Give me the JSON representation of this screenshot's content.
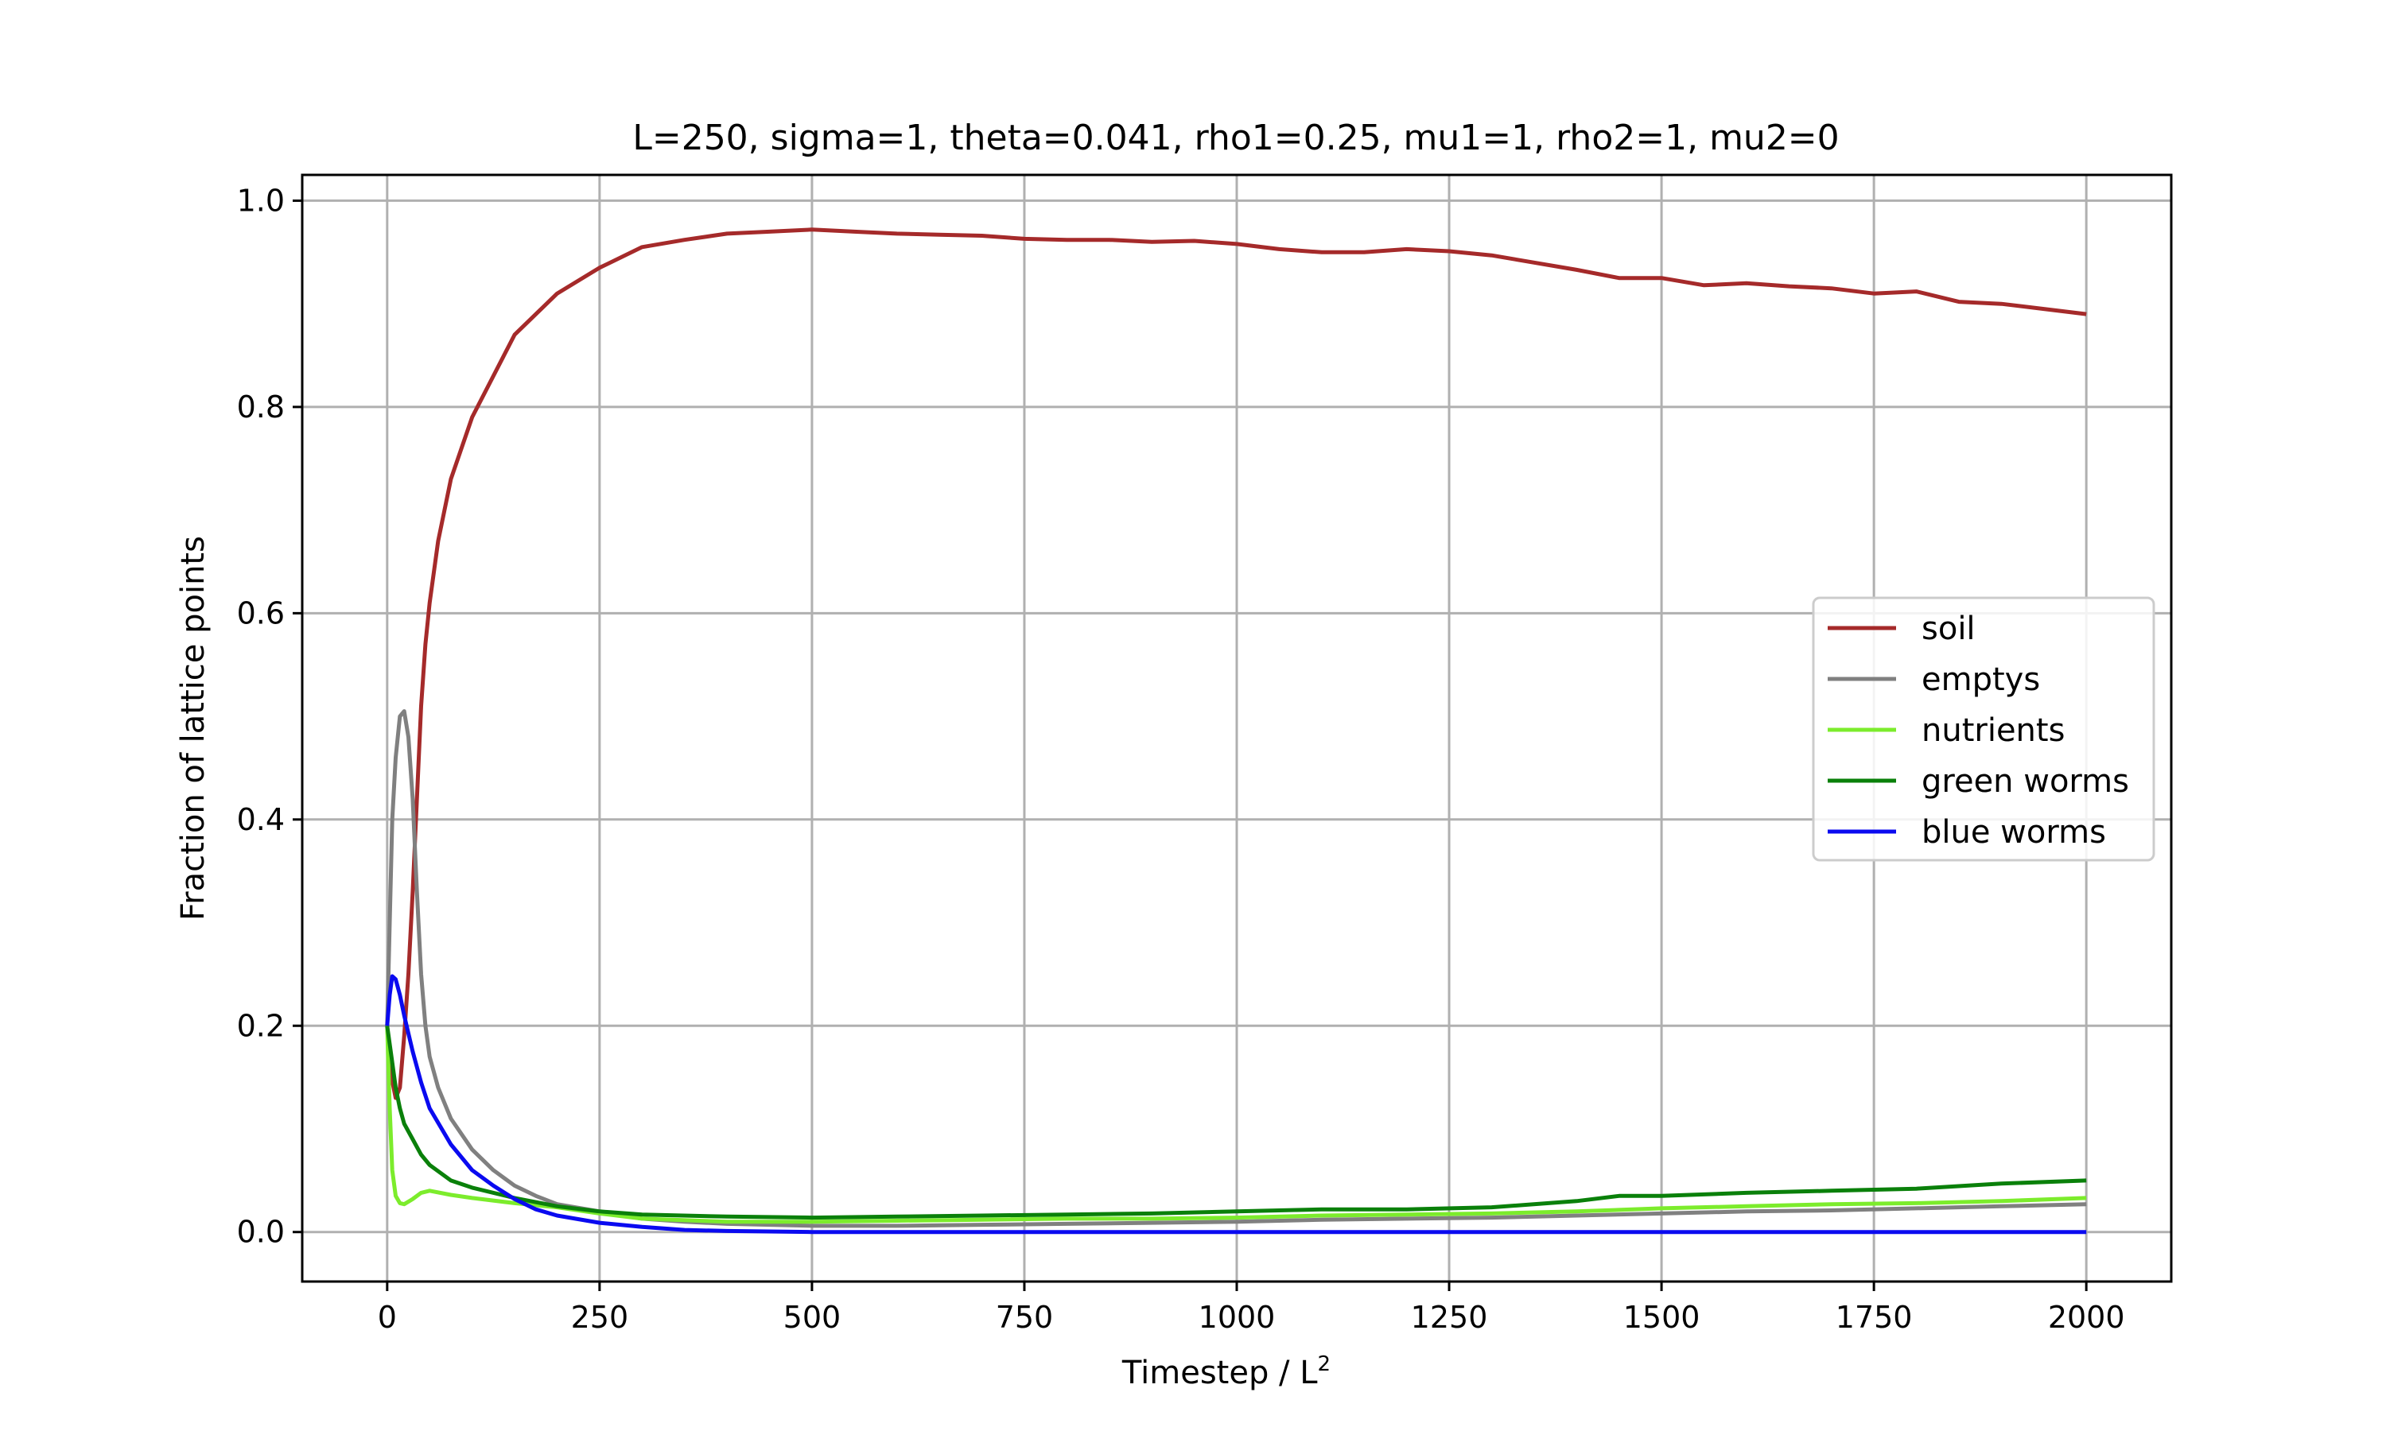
{
  "chart_data": {
    "type": "line",
    "title": "L=250, sigma=1, theta=0.041, rho1=0.25, mu1=1, rho2=1, mu2=0",
    "xlabel": "Timestep / L",
    "xlabel_sup": "2",
    "ylabel": "Fraction of lattice points",
    "xlim": [
      -100,
      2100
    ],
    "ylim": [
      -0.048,
      1.025
    ],
    "xticks": [
      0,
      250,
      500,
      750,
      1000,
      1250,
      1500,
      1750,
      2000
    ],
    "xtick_labels": [
      "0",
      "250",
      "500",
      "750",
      "1000",
      "1250",
      "1500",
      "1750",
      "2000"
    ],
    "yticks": [
      0.0,
      0.2,
      0.4,
      0.6,
      0.8,
      1.0
    ],
    "ytick_labels": [
      "0.0",
      "0.2",
      "0.4",
      "0.6",
      "0.8",
      "1.0"
    ],
    "grid": true,
    "legend_position": "right",
    "series": [
      {
        "name": "soil",
        "color": "#a52a2a",
        "points": [
          [
            0,
            0.2
          ],
          [
            5,
            0.15
          ],
          [
            10,
            0.13
          ],
          [
            15,
            0.14
          ],
          [
            20,
            0.19
          ],
          [
            25,
            0.25
          ],
          [
            30,
            0.33
          ],
          [
            35,
            0.42
          ],
          [
            40,
            0.51
          ],
          [
            45,
            0.57
          ],
          [
            50,
            0.61
          ],
          [
            60,
            0.67
          ],
          [
            75,
            0.73
          ],
          [
            100,
            0.79
          ],
          [
            125,
            0.83
          ],
          [
            150,
            0.87
          ],
          [
            175,
            0.89
          ],
          [
            200,
            0.91
          ],
          [
            250,
            0.935
          ],
          [
            300,
            0.955
          ],
          [
            350,
            0.962
          ],
          [
            400,
            0.968
          ],
          [
            450,
            0.97
          ],
          [
            500,
            0.972
          ],
          [
            550,
            0.97
          ],
          [
            600,
            0.968
          ],
          [
            650,
            0.967
          ],
          [
            700,
            0.966
          ],
          [
            750,
            0.963
          ],
          [
            800,
            0.962
          ],
          [
            850,
            0.962
          ],
          [
            900,
            0.96
          ],
          [
            950,
            0.961
          ],
          [
            1000,
            0.958
          ],
          [
            1050,
            0.953
          ],
          [
            1100,
            0.95
          ],
          [
            1150,
            0.95
          ],
          [
            1200,
            0.953
          ],
          [
            1250,
            0.951
          ],
          [
            1300,
            0.947
          ],
          [
            1350,
            0.94
          ],
          [
            1400,
            0.933
          ],
          [
            1450,
            0.925
          ],
          [
            1500,
            0.925
          ],
          [
            1550,
            0.918
          ],
          [
            1600,
            0.92
          ],
          [
            1650,
            0.917
          ],
          [
            1700,
            0.915
          ],
          [
            1750,
            0.91
          ],
          [
            1800,
            0.912
          ],
          [
            1850,
            0.902
          ],
          [
            1900,
            0.9
          ],
          [
            1950,
            0.895
          ],
          [
            2000,
            0.89
          ]
        ]
      },
      {
        "name": "emptys",
        "color": "#808080",
        "points": [
          [
            0,
            0.2
          ],
          [
            3,
            0.3
          ],
          [
            6,
            0.4
          ],
          [
            10,
            0.46
          ],
          [
            15,
            0.5
          ],
          [
            20,
            0.505
          ],
          [
            25,
            0.48
          ],
          [
            30,
            0.42
          ],
          [
            35,
            0.33
          ],
          [
            40,
            0.25
          ],
          [
            45,
            0.2
          ],
          [
            50,
            0.17
          ],
          [
            60,
            0.14
          ],
          [
            75,
            0.11
          ],
          [
            100,
            0.08
          ],
          [
            125,
            0.06
          ],
          [
            150,
            0.045
          ],
          [
            175,
            0.035
          ],
          [
            200,
            0.027
          ],
          [
            250,
            0.02
          ],
          [
            300,
            0.013
          ],
          [
            350,
            0.01
          ],
          [
            400,
            0.008
          ],
          [
            500,
            0.006
          ],
          [
            600,
            0.006
          ],
          [
            700,
            0.007
          ],
          [
            800,
            0.008
          ],
          [
            900,
            0.009
          ],
          [
            1000,
            0.01
          ],
          [
            1100,
            0.012
          ],
          [
            1200,
            0.013
          ],
          [
            1300,
            0.014
          ],
          [
            1400,
            0.016
          ],
          [
            1500,
            0.018
          ],
          [
            1600,
            0.02
          ],
          [
            1700,
            0.021
          ],
          [
            1800,
            0.023
          ],
          [
            1900,
            0.025
          ],
          [
            2000,
            0.027
          ]
        ]
      },
      {
        "name": "nutrients",
        "color": "#7cec2c",
        "points": [
          [
            0,
            0.2
          ],
          [
            3,
            0.12
          ],
          [
            6,
            0.06
          ],
          [
            10,
            0.035
          ],
          [
            15,
            0.028
          ],
          [
            20,
            0.027
          ],
          [
            30,
            0.032
          ],
          [
            40,
            0.038
          ],
          [
            50,
            0.04
          ],
          [
            75,
            0.036
          ],
          [
            100,
            0.033
          ],
          [
            150,
            0.028
          ],
          [
            200,
            0.024
          ],
          [
            250,
            0.018
          ],
          [
            300,
            0.013
          ],
          [
            400,
            0.01
          ],
          [
            500,
            0.01
          ],
          [
            600,
            0.011
          ],
          [
            700,
            0.012
          ],
          [
            800,
            0.013
          ],
          [
            900,
            0.013
          ],
          [
            1000,
            0.014
          ],
          [
            1100,
            0.016
          ],
          [
            1200,
            0.017
          ],
          [
            1300,
            0.018
          ],
          [
            1400,
            0.02
          ],
          [
            1500,
            0.023
          ],
          [
            1600,
            0.025
          ],
          [
            1700,
            0.027
          ],
          [
            1800,
            0.028
          ],
          [
            1900,
            0.03
          ],
          [
            2000,
            0.033
          ]
        ]
      },
      {
        "name": "green worms",
        "color": "#0a800a",
        "points": [
          [
            0,
            0.2
          ],
          [
            5,
            0.17
          ],
          [
            10,
            0.14
          ],
          [
            15,
            0.12
          ],
          [
            20,
            0.105
          ],
          [
            30,
            0.09
          ],
          [
            40,
            0.075
          ],
          [
            50,
            0.065
          ],
          [
            75,
            0.05
          ],
          [
            100,
            0.043
          ],
          [
            150,
            0.033
          ],
          [
            200,
            0.025
          ],
          [
            250,
            0.02
          ],
          [
            300,
            0.017
          ],
          [
            400,
            0.015
          ],
          [
            500,
            0.014
          ],
          [
            600,
            0.015
          ],
          [
            700,
            0.016
          ],
          [
            800,
            0.017
          ],
          [
            900,
            0.018
          ],
          [
            1000,
            0.02
          ],
          [
            1100,
            0.022
          ],
          [
            1200,
            0.022
          ],
          [
            1300,
            0.024
          ],
          [
            1400,
            0.03
          ],
          [
            1450,
            0.035
          ],
          [
            1500,
            0.035
          ],
          [
            1600,
            0.038
          ],
          [
            1700,
            0.04
          ],
          [
            1800,
            0.042
          ],
          [
            1900,
            0.047
          ],
          [
            2000,
            0.05
          ]
        ]
      },
      {
        "name": "blue worms",
        "color": "#0a0af0",
        "points": [
          [
            0,
            0.2
          ],
          [
            3,
            0.23
          ],
          [
            6,
            0.248
          ],
          [
            10,
            0.245
          ],
          [
            15,
            0.23
          ],
          [
            20,
            0.21
          ],
          [
            30,
            0.175
          ],
          [
            40,
            0.145
          ],
          [
            50,
            0.12
          ],
          [
            75,
            0.085
          ],
          [
            100,
            0.06
          ],
          [
            125,
            0.045
          ],
          [
            150,
            0.032
          ],
          [
            175,
            0.022
          ],
          [
            200,
            0.016
          ],
          [
            250,
            0.009
          ],
          [
            300,
            0.005
          ],
          [
            350,
            0.002
          ],
          [
            400,
            0.001
          ],
          [
            500,
            0.0
          ],
          [
            1000,
            0.0
          ],
          [
            1500,
            0.0
          ],
          [
            2000,
            0.0
          ]
        ]
      }
    ]
  }
}
